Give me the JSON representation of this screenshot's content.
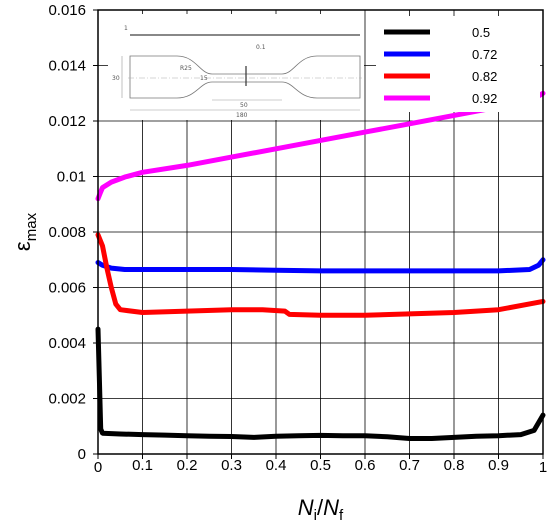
{
  "chart_data": {
    "type": "line",
    "xlabel": {
      "main": "N",
      "main_sub": "i",
      "sep": "/",
      "den": "N",
      "den_sub": "f"
    },
    "ylabel": {
      "main": "ε",
      "sub": "max"
    },
    "xlim": [
      0,
      1
    ],
    "ylim": [
      0,
      0.016
    ],
    "xticks": [
      0,
      0.1,
      0.2,
      0.3,
      0.4,
      0.5,
      0.6,
      0.7,
      0.8,
      0.9,
      1
    ],
    "xtick_labels": [
      "0",
      "0.1",
      "0.2",
      "0.3",
      "0.4",
      "0.5",
      "0.6",
      "0.7",
      "0.8",
      "0.9",
      "1"
    ],
    "yticks": [
      0,
      0.002,
      0.004,
      0.006,
      0.008,
      0.01,
      0.012,
      0.014,
      0.016
    ],
    "ytick_labels": [
      "0",
      "0.002",
      "0.004",
      "0.006",
      "0.008",
      "0.01",
      "0.012",
      "0.014",
      "0.016"
    ],
    "grid": true,
    "legend_position": "top-right",
    "series": [
      {
        "name": "0.5",
        "color": "#000000",
        "points": [
          [
            0,
            0.0045
          ],
          [
            0.003,
            0.0028
          ],
          [
            0.006,
            0.0009
          ],
          [
            0.01,
            0.00075
          ],
          [
            0.05,
            0.00072
          ],
          [
            0.1,
            0.0007
          ],
          [
            0.15,
            0.00068
          ],
          [
            0.2,
            0.00066
          ],
          [
            0.25,
            0.00064
          ],
          [
            0.3,
            0.00063
          ],
          [
            0.35,
            0.0006
          ],
          [
            0.4,
            0.00064
          ],
          [
            0.45,
            0.00066
          ],
          [
            0.5,
            0.00067
          ],
          [
            0.55,
            0.00066
          ],
          [
            0.6,
            0.00066
          ],
          [
            0.65,
            0.00062
          ],
          [
            0.7,
            0.00056
          ],
          [
            0.75,
            0.00056
          ],
          [
            0.8,
            0.0006
          ],
          [
            0.85,
            0.00064
          ],
          [
            0.9,
            0.00066
          ],
          [
            0.95,
            0.0007
          ],
          [
            0.98,
            0.00085
          ],
          [
            1.0,
            0.0014
          ]
        ]
      },
      {
        "name": "0.72",
        "color": "#0000ff",
        "points": [
          [
            0,
            0.0069
          ],
          [
            0.01,
            0.0068
          ],
          [
            0.03,
            0.0067
          ],
          [
            0.06,
            0.00665
          ],
          [
            0.1,
            0.00665
          ],
          [
            0.2,
            0.00665
          ],
          [
            0.3,
            0.00665
          ],
          [
            0.4,
            0.00662
          ],
          [
            0.5,
            0.0066
          ],
          [
            0.6,
            0.0066
          ],
          [
            0.7,
            0.0066
          ],
          [
            0.8,
            0.0066
          ],
          [
            0.9,
            0.0066
          ],
          [
            0.97,
            0.00665
          ],
          [
            0.99,
            0.0068
          ],
          [
            1.0,
            0.007
          ]
        ]
      },
      {
        "name": "0.82",
        "color": "#ff0000",
        "points": [
          [
            0,
            0.0079
          ],
          [
            0.01,
            0.0075
          ],
          [
            0.02,
            0.0067
          ],
          [
            0.03,
            0.006
          ],
          [
            0.04,
            0.0054
          ],
          [
            0.05,
            0.0052
          ],
          [
            0.1,
            0.0051
          ],
          [
            0.2,
            0.00515
          ],
          [
            0.3,
            0.0052
          ],
          [
            0.37,
            0.0052
          ],
          [
            0.42,
            0.00515
          ],
          [
            0.43,
            0.00503
          ],
          [
            0.5,
            0.005
          ],
          [
            0.6,
            0.005
          ],
          [
            0.7,
            0.00505
          ],
          [
            0.8,
            0.0051
          ],
          [
            0.9,
            0.0052
          ],
          [
            1.0,
            0.0055
          ]
        ]
      },
      {
        "name": "0.92",
        "color": "#ff00ff",
        "points": [
          [
            0,
            0.0092
          ],
          [
            0.005,
            0.0094
          ],
          [
            0.01,
            0.0096
          ],
          [
            0.03,
            0.0098
          ],
          [
            0.06,
            0.00998
          ],
          [
            0.1,
            0.01015
          ],
          [
            0.2,
            0.0104
          ],
          [
            0.3,
            0.0107
          ],
          [
            0.4,
            0.011
          ],
          [
            0.5,
            0.0113
          ],
          [
            0.6,
            0.0116
          ],
          [
            0.7,
            0.0119
          ],
          [
            0.8,
            0.0122
          ],
          [
            0.9,
            0.0125
          ],
          [
            0.98,
            0.0128
          ],
          [
            1.0,
            0.013
          ]
        ]
      }
    ],
    "inset": {
      "labels": [
        "1",
        "30",
        "R25",
        "15",
        "0.1",
        "50",
        "180"
      ]
    }
  }
}
